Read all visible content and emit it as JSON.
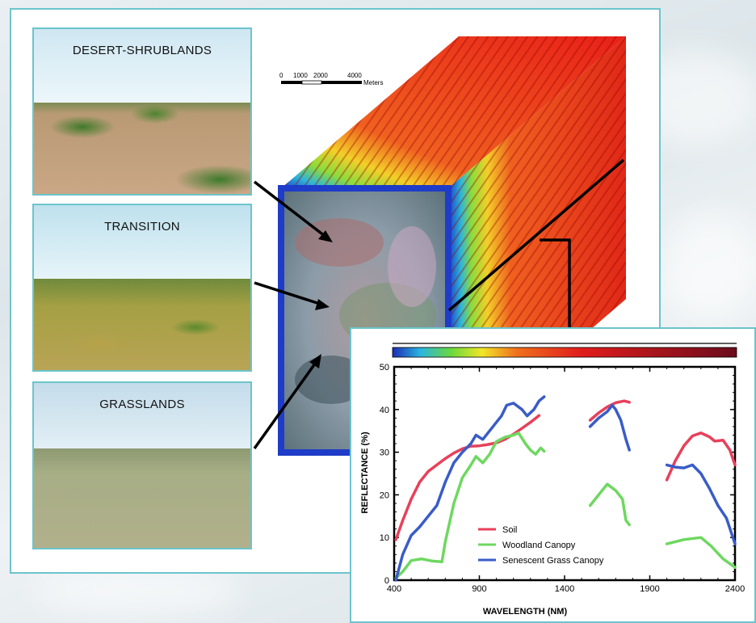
{
  "panels": [
    {
      "label": "DESERT-SHRUBLANDS"
    },
    {
      "label": "TRANSITION"
    },
    {
      "label": "GRASSLANDS"
    }
  ],
  "scale_bar": {
    "ticks": [
      "0",
      "1000",
      "2000",
      "4000"
    ],
    "unit": "Meters"
  },
  "colors": {
    "frame_border": "#6cc4cc",
    "soil": "#e8405a",
    "woodland": "#6ed860",
    "grass": "#3a5cc8"
  },
  "chart_data": {
    "type": "line",
    "xlabel": "WAVELENGTH (NM)",
    "ylabel": "REFLECTANCE (%)",
    "xlim": [
      400,
      2400
    ],
    "ylim": [
      0,
      50
    ],
    "x_ticks": [
      "400",
      "900",
      "1400",
      "1900",
      "2400"
    ],
    "y_ticks": [
      "0",
      "10",
      "20",
      "30",
      "40",
      "50"
    ],
    "legend_position": "lower-center",
    "series": [
      {
        "name": "Soil",
        "color": "#e8405a",
        "segments": [
          [
            [
              410,
              9.5
            ],
            [
              450,
              14
            ],
            [
              500,
              19
            ],
            [
              550,
              23
            ],
            [
              600,
              25.5
            ],
            [
              650,
              27
            ],
            [
              700,
              28.5
            ],
            [
              750,
              29.8
            ],
            [
              800,
              30.8
            ],
            [
              850,
              31.4
            ],
            [
              900,
              31.5
            ],
            [
              950,
              31.8
            ],
            [
              1000,
              32.2
            ],
            [
              1050,
              33
            ],
            [
              1100,
              34.2
            ],
            [
              1150,
              35.6
            ],
            [
              1200,
              37
            ],
            [
              1250,
              38.6
            ]
          ],
          [
            [
              1550,
              37.5
            ],
            [
              1600,
              39.2
            ],
            [
              1650,
              40.6
            ],
            [
              1700,
              41.6
            ],
            [
              1750,
              42
            ],
            [
              1780,
              41.7
            ]
          ],
          [
            [
              2000,
              23.5
            ],
            [
              2050,
              28
            ],
            [
              2100,
              31.5
            ],
            [
              2150,
              33.8
            ],
            [
              2200,
              34.5
            ],
            [
              2250,
              33.6
            ],
            [
              2280,
              32.6
            ],
            [
              2330,
              32.8
            ],
            [
              2370,
              30.5
            ],
            [
              2400,
              27
            ]
          ]
        ]
      },
      {
        "name": "Woodland Canopy",
        "color": "#6ed860",
        "segments": [
          [
            [
              410,
              0.5
            ],
            [
              450,
              2
            ],
            [
              500,
              4.6
            ],
            [
              560,
              5
            ],
            [
              620,
              4.5
            ],
            [
              680,
              4.3
            ],
            [
              700,
              9
            ],
            [
              750,
              18
            ],
            [
              800,
              24
            ],
            [
              850,
              27
            ],
            [
              880,
              29
            ],
            [
              920,
              27.5
            ],
            [
              960,
              29.5
            ],
            [
              1000,
              32.5
            ],
            [
              1050,
              33.5
            ],
            [
              1100,
              34
            ],
            [
              1130,
              34.5
            ],
            [
              1170,
              32
            ],
            [
              1200,
              30.5
            ],
            [
              1230,
              29.5
            ],
            [
              1260,
              31
            ],
            [
              1280,
              30.2
            ]
          ],
          [
            [
              1550,
              17.5
            ],
            [
              1600,
              20
            ],
            [
              1650,
              22.5
            ],
            [
              1700,
              21
            ],
            [
              1740,
              19
            ],
            [
              1760,
              14
            ],
            [
              1780,
              13
            ]
          ],
          [
            [
              2000,
              8.5
            ],
            [
              2100,
              9.5
            ],
            [
              2200,
              10
            ],
            [
              2260,
              8
            ],
            [
              2330,
              5
            ],
            [
              2400,
              3
            ]
          ]
        ]
      },
      {
        "name": "Senescent Grass Canopy",
        "color": "#3a5cc8",
        "segments": [
          [
            [
              410,
              0
            ],
            [
              450,
              6
            ],
            [
              500,
              10.5
            ],
            [
              550,
              12.5
            ],
            [
              600,
              15
            ],
            [
              650,
              17.5
            ],
            [
              700,
              23
            ],
            [
              750,
              27.5
            ],
            [
              800,
              30
            ],
            [
              850,
              32
            ],
            [
              880,
              34
            ],
            [
              920,
              33
            ],
            [
              960,
              35
            ],
            [
              1000,
              37
            ],
            [
              1030,
              38.5
            ],
            [
              1060,
              41
            ],
            [
              1100,
              41.5
            ],
            [
              1150,
              40
            ],
            [
              1180,
              38.5
            ],
            [
              1220,
              40
            ],
            [
              1250,
              42
            ],
            [
              1280,
              43
            ]
          ],
          [
            [
              1550,
              36
            ],
            [
              1600,
              38
            ],
            [
              1650,
              39.5
            ],
            [
              1680,
              41
            ],
            [
              1700,
              40
            ],
            [
              1730,
              37.5
            ],
            [
              1760,
              33
            ],
            [
              1780,
              30.5
            ]
          ],
          [
            [
              2000,
              27
            ],
            [
              2050,
              26.5
            ],
            [
              2100,
              26.3
            ],
            [
              2150,
              27
            ],
            [
              2200,
              25
            ],
            [
              2250,
              21.5
            ],
            [
              2300,
              17.5
            ],
            [
              2350,
              14.5
            ],
            [
              2400,
              8.5
            ]
          ]
        ]
      }
    ]
  }
}
